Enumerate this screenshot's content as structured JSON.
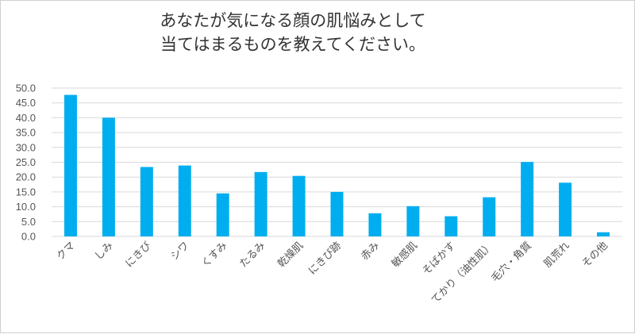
{
  "chart_data": {
    "type": "bar",
    "title_lines": [
      "あなたが気になる顔の肌悩みとして",
      "当てはまるものを教えてください。"
    ],
    "categories": [
      "クマ",
      "しみ",
      "にきび",
      "シワ",
      "くすみ",
      "たるみ",
      "乾燥肌",
      "にきび跡",
      "赤み",
      "敏感肌",
      "そばかす",
      "てかり（油性肌）",
      "毛穴・角質",
      "肌荒れ",
      "その他"
    ],
    "values": [
      47.7,
      40.0,
      23.4,
      23.9,
      14.5,
      21.7,
      20.4,
      15.0,
      7.8,
      10.2,
      6.8,
      13.2,
      25.1,
      18.1,
      1.4
    ],
    "ylim": [
      0,
      50
    ],
    "yticks": [
      "0.0",
      "5.0",
      "10.0",
      "15.0",
      "20.0",
      "25.0",
      "30.0",
      "35.0",
      "40.0",
      "45.0",
      "50.0"
    ],
    "grid": true,
    "bar_color": "#00AEEF",
    "grid_color": "#d9d9d9",
    "xlabel": "",
    "ylabel": ""
  }
}
